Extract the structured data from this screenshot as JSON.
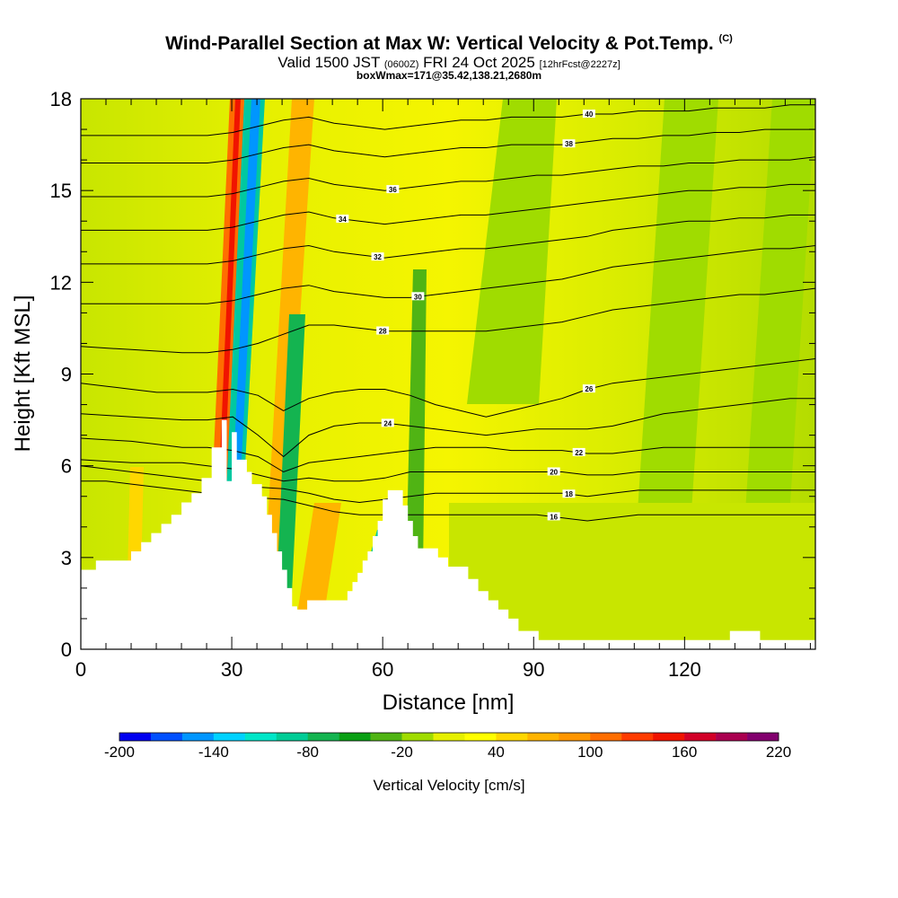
{
  "title": "Wind-Parallel Section at Max W: Vertical Velocity & Pot.Temp.",
  "copyright_mark": "(C)",
  "subtitle": {
    "valid": "Valid 1500 JST",
    "utc": "(0600Z)",
    "date": "FRI 24 Oct 2025",
    "fcst": "[12hrFcst@2227z]"
  },
  "box_info": "boxWmax=171@35.42,138.21,2680m",
  "chart_data": {
    "type": "heatmap",
    "xlabel": "Distance [nm]",
    "ylabel": "Height [Kft MSL]",
    "xlim": [
      0,
      146
    ],
    "ylim": [
      0,
      18
    ],
    "x_ticks": [
      0,
      30,
      60,
      90,
      120
    ],
    "y_ticks": [
      0,
      3,
      6,
      9,
      12,
      15,
      18
    ],
    "colorbar": {
      "label": "Vertical Velocity [cm/s]",
      "min": -200,
      "max": 220,
      "step": 20,
      "tick_labels": [
        -200,
        -140,
        -80,
        -20,
        40,
        100,
        160,
        220
      ],
      "colors": [
        "#0000f0",
        "#0050ff",
        "#0096ff",
        "#00d2ff",
        "#00e6c8",
        "#00cc96",
        "#14b450",
        "#0aa014",
        "#50b414",
        "#a0dc00",
        "#e6f000",
        "#ffff00",
        "#ffd700",
        "#ffb400",
        "#ff9600",
        "#ff6e00",
        "#ff3c00",
        "#f01400",
        "#d20028",
        "#aa0050",
        "#82006e"
      ]
    },
    "terrain_kft": [
      [
        0,
        2.6
      ],
      [
        3,
        2.6
      ],
      [
        3,
        2.9
      ],
      [
        10,
        2.9
      ],
      [
        10,
        3.2
      ],
      [
        12,
        3.2
      ],
      [
        12,
        3.5
      ],
      [
        14,
        3.5
      ],
      [
        14,
        3.8
      ],
      [
        16,
        3.8
      ],
      [
        16,
        4.1
      ],
      [
        18,
        4.1
      ],
      [
        18,
        4.4
      ],
      [
        20,
        4.4
      ],
      [
        20,
        4.8
      ],
      [
        22,
        4.8
      ],
      [
        22,
        5.1
      ],
      [
        24,
        5.1
      ],
      [
        24,
        5.6
      ],
      [
        26,
        5.6
      ],
      [
        26,
        6.6
      ],
      [
        28,
        6.6
      ],
      [
        28,
        7.5
      ],
      [
        29,
        7.5
      ],
      [
        29,
        5.5
      ],
      [
        30,
        5.5
      ],
      [
        30,
        7.1
      ],
      [
        31,
        7.1
      ],
      [
        31,
        6.2
      ],
      [
        33,
        6.2
      ],
      [
        33,
        5.8
      ],
      [
        34,
        5.8
      ],
      [
        34,
        5.4
      ],
      [
        36,
        5.4
      ],
      [
        36,
        5.0
      ],
      [
        37,
        5.0
      ],
      [
        37,
        4.4
      ],
      [
        38,
        4.4
      ],
      [
        38,
        3.8
      ],
      [
        39,
        3.8
      ],
      [
        39,
        3.2
      ],
      [
        40,
        3.2
      ],
      [
        40,
        2.6
      ],
      [
        41,
        2.6
      ],
      [
        41,
        2.0
      ],
      [
        42,
        2.0
      ],
      [
        42,
        1.4
      ],
      [
        43,
        1.4
      ],
      [
        43,
        1.3
      ],
      [
        45,
        1.3
      ],
      [
        45,
        1.6
      ],
      [
        53,
        1.6
      ],
      [
        53,
        1.9
      ],
      [
        54,
        1.9
      ],
      [
        54,
        2.2
      ],
      [
        55,
        2.2
      ],
      [
        55,
        2.5
      ],
      [
        56,
        2.5
      ],
      [
        56,
        2.9
      ],
      [
        57,
        2.9
      ],
      [
        57,
        3.2
      ],
      [
        58,
        3.2
      ],
      [
        58,
        3.7
      ],
      [
        59,
        3.7
      ],
      [
        59,
        4.2
      ],
      [
        60,
        4.2
      ],
      [
        60,
        4.9
      ],
      [
        61,
        4.9
      ],
      [
        61,
        5.2
      ],
      [
        64,
        5.2
      ],
      [
        64,
        4.7
      ],
      [
        65,
        4.7
      ],
      [
        65,
        4.2
      ],
      [
        66,
        4.2
      ],
      [
        66,
        3.7
      ],
      [
        67,
        3.7
      ],
      [
        67,
        3.3
      ],
      [
        71,
        3.3
      ],
      [
        71,
        3.0
      ],
      [
        73,
        3.0
      ],
      [
        73,
        2.7
      ],
      [
        77,
        2.7
      ],
      [
        77,
        2.3
      ],
      [
        79,
        2.3
      ],
      [
        79,
        1.9
      ],
      [
        81,
        1.9
      ],
      [
        81,
        1.6
      ],
      [
        83,
        1.6
      ],
      [
        83,
        1.3
      ],
      [
        85,
        1.3
      ],
      [
        85,
        1.0
      ],
      [
        87,
        1.0
      ],
      [
        87,
        0.6
      ],
      [
        91,
        0.6
      ],
      [
        91,
        0.3
      ],
      [
        129,
        0.3
      ],
      [
        129,
        0.6
      ],
      [
        135,
        0.6
      ],
      [
        135,
        0.3
      ],
      [
        146,
        0.3
      ]
    ],
    "theta_contours": [
      {
        "label": "16",
        "at_x": 94,
        "kft": [
          5.5,
          5.5,
          5.4,
          5.3,
          5.2,
          5.1,
          5.0,
          4.95,
          4.9,
          4.7,
          4.5,
          4.4,
          4.4,
          4.4,
          4.4,
          4.4,
          4.4,
          4.4,
          4.4,
          4.3,
          4.2,
          4.3,
          4.4,
          4.4,
          4.4,
          4.4,
          4.4,
          4.4,
          4.4,
          4.4
        ]
      },
      {
        "label": "18",
        "at_x": 97,
        "kft": [
          6.0,
          5.9,
          5.8,
          5.7,
          5.6,
          5.5,
          5.4,
          5.3,
          5.25,
          5.1,
          4.9,
          4.8,
          4.9,
          5.0,
          5.1,
          5.1,
          5.1,
          5.1,
          5.1,
          5.1,
          5.0,
          5.1,
          5.2,
          5.2,
          5.2,
          5.2,
          5.2,
          5.2,
          5.2,
          5.2
        ]
      },
      {
        "label": "20",
        "at_x": 94,
        "kft": [
          6.2,
          6.15,
          6.1,
          6.1,
          6.1,
          6.0,
          5.9,
          5.7,
          5.5,
          5.6,
          5.5,
          5.5,
          5.6,
          5.8,
          5.8,
          5.8,
          5.8,
          5.8,
          5.8,
          5.8,
          5.7,
          5.7,
          5.8,
          5.8,
          5.8,
          5.8,
          5.8,
          5.8,
          5.8,
          5.8
        ]
      },
      {
        "label": "22",
        "at_x": 99,
        "kft": [
          6.9,
          6.85,
          6.8,
          6.7,
          6.6,
          6.6,
          6.5,
          6.3,
          5.8,
          6.1,
          6.2,
          6.3,
          6.4,
          6.5,
          6.6,
          6.6,
          6.6,
          6.5,
          6.5,
          6.5,
          6.4,
          6.4,
          6.5,
          6.6,
          6.6,
          6.6,
          6.6,
          6.6,
          6.6,
          6.6
        ]
      },
      {
        "label": "24",
        "at_x": 61,
        "kft": [
          7.7,
          7.65,
          7.6,
          7.55,
          7.5,
          7.5,
          7.6,
          7.0,
          6.3,
          7.0,
          7.3,
          7.4,
          7.4,
          7.3,
          7.2,
          7.1,
          7.0,
          7.1,
          7.2,
          7.2,
          7.2,
          7.3,
          7.5,
          7.7,
          7.8,
          7.9,
          8.0,
          8.1,
          8.2,
          8.2
        ]
      },
      {
        "label": "26",
        "at_x": 101,
        "kft": [
          8.7,
          8.6,
          8.5,
          8.4,
          8.4,
          8.4,
          8.5,
          8.3,
          7.8,
          8.2,
          8.4,
          8.5,
          8.5,
          8.3,
          8.0,
          7.8,
          7.6,
          7.8,
          8.0,
          8.2,
          8.5,
          8.7,
          8.8,
          8.9,
          9.0,
          9.1,
          9.2,
          9.3,
          9.4,
          9.5
        ]
      },
      {
        "label": "28",
        "at_x": 60,
        "kft": [
          9.9,
          9.85,
          9.8,
          9.75,
          9.7,
          9.7,
          9.8,
          10.0,
          10.3,
          10.6,
          10.6,
          10.5,
          10.4,
          10.4,
          10.4,
          10.4,
          10.4,
          10.5,
          10.6,
          10.7,
          10.9,
          11.1,
          11.2,
          11.3,
          11.4,
          11.5,
          11.6,
          11.6,
          11.7,
          11.8
        ]
      },
      {
        "label": "30",
        "at_x": 67,
        "kft": [
          11.3,
          11.3,
          11.3,
          11.3,
          11.3,
          11.3,
          11.4,
          11.6,
          11.8,
          11.9,
          11.7,
          11.6,
          11.5,
          11.5,
          11.6,
          11.7,
          11.8,
          11.9,
          12.0,
          12.1,
          12.3,
          12.5,
          12.6,
          12.7,
          12.8,
          12.9,
          13.0,
          13.1,
          13.1,
          13.2
        ]
      },
      {
        "label": "32",
        "at_x": 59,
        "kft": [
          12.6,
          12.6,
          12.6,
          12.6,
          12.6,
          12.6,
          12.7,
          12.9,
          13.1,
          13.2,
          13.0,
          12.9,
          12.8,
          12.9,
          13.0,
          13.1,
          13.1,
          13.2,
          13.3,
          13.4,
          13.5,
          13.7,
          13.8,
          13.9,
          14.0,
          14.0,
          14.1,
          14.1,
          14.2,
          14.2
        ]
      },
      {
        "label": "34",
        "at_x": 52,
        "kft": [
          13.7,
          13.7,
          13.7,
          13.7,
          13.7,
          13.7,
          13.8,
          14.0,
          14.2,
          14.3,
          14.1,
          14.0,
          13.9,
          14.0,
          14.1,
          14.2,
          14.2,
          14.3,
          14.4,
          14.5,
          14.6,
          14.7,
          14.8,
          14.9,
          15.0,
          15.0,
          15.1,
          15.1,
          15.2,
          15.2
        ]
      },
      {
        "label": "36",
        "at_x": 62,
        "kft": [
          14.8,
          14.8,
          14.8,
          14.8,
          14.8,
          14.8,
          14.9,
          15.1,
          15.3,
          15.4,
          15.2,
          15.1,
          15.0,
          15.1,
          15.2,
          15.3,
          15.3,
          15.4,
          15.5,
          15.5,
          15.6,
          15.7,
          15.8,
          15.8,
          15.9,
          15.9,
          16.0,
          16.0,
          16.0,
          16.1
        ]
      },
      {
        "label": "38",
        "at_x": 97,
        "kft": [
          15.9,
          15.9,
          15.9,
          15.9,
          15.9,
          15.9,
          16.0,
          16.2,
          16.4,
          16.5,
          16.3,
          16.2,
          16.1,
          16.2,
          16.3,
          16.4,
          16.4,
          16.5,
          16.5,
          16.5,
          16.6,
          16.7,
          16.7,
          16.8,
          16.8,
          16.9,
          16.9,
          17.0,
          17.0,
          17.0
        ]
      },
      {
        "label": "40",
        "at_x": 101,
        "kft": [
          16.8,
          16.8,
          16.8,
          16.8,
          16.8,
          16.8,
          16.9,
          17.1,
          17.3,
          17.4,
          17.2,
          17.1,
          17.0,
          17.1,
          17.2,
          17.3,
          17.3,
          17.4,
          17.4,
          17.4,
          17.5,
          17.5,
          17.6,
          17.6,
          17.6,
          17.7,
          17.7,
          17.7,
          17.8,
          17.8
        ]
      }
    ]
  }
}
